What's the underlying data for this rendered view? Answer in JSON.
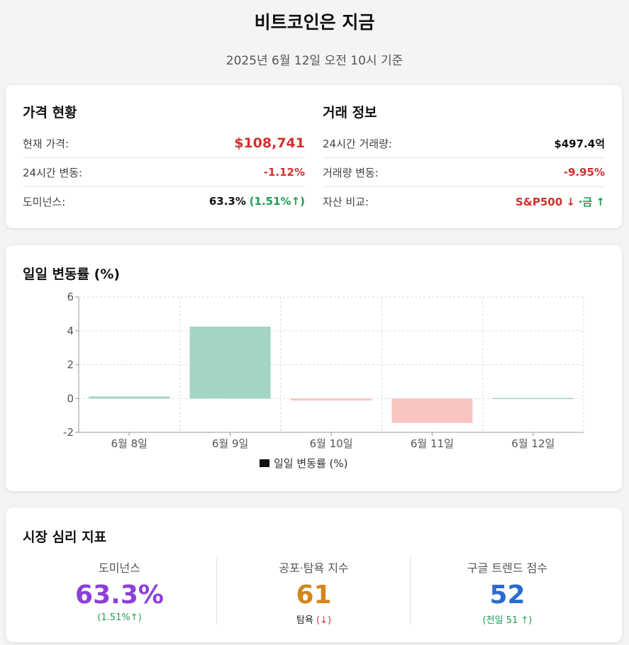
{
  "header": {
    "title": "비트코인은 지금",
    "subtitle": "2025년 6월 12일 오전 10시 기준"
  },
  "price_status": {
    "title": "가격 현황",
    "current_label": "현재 가격:",
    "current_value": "$108,741",
    "change_label": "24시간 변동:",
    "change_value": "-1.12%",
    "dominance_label": "도미넌스:",
    "dominance_value": "63.3%",
    "dominance_change": "(1.51%↑)"
  },
  "trade_info": {
    "title": "거래 정보",
    "volume_label": "24시간 거래량:",
    "volume_value": "$497.4억",
    "volume_change_label": "거래량 변동:",
    "volume_change_value": "-9.95%",
    "compare_label": "자산 비교:",
    "compare_sp": "S&P500 ↓",
    "compare_gold": "·금 ↑"
  },
  "chart_title": "일일 변동률 (%)",
  "chart_data": {
    "type": "bar",
    "title": "일일 변동률 (%)",
    "categories": [
      "6월 8일",
      "6월 9일",
      "6월 10일",
      "6월 11일",
      "6월 12일"
    ],
    "values": [
      0.12,
      4.25,
      -0.12,
      -1.45,
      0.03
    ],
    "ylim": [
      -2,
      6
    ],
    "yticks": [
      -2,
      0,
      2,
      4,
      6
    ],
    "legend": "일일 변동률 (%)",
    "legend_position": "bottom",
    "grid": true,
    "colors": {
      "positive": "#a2d5c6",
      "negative": "#f8c5c2",
      "positive_edge": "#7cc4ae",
      "negative_edge": "#f0a09a"
    }
  },
  "sentiment": {
    "title": "시장 심리 지표",
    "dominance": {
      "label": "도미넌스",
      "value": "63.3%",
      "sub": "(1.51%↑)",
      "color": "#8b3fd9"
    },
    "fear_greed": {
      "label": "공포·탐욕 지수",
      "value": "61",
      "sub_text": "탐욕",
      "sub_arrow": "(↓)",
      "color": "#d4861a"
    },
    "google_trends": {
      "label": "구글 트렌드 점수",
      "value": "52",
      "sub": "(전일 51 ↑)",
      "color": "#2a6bd1"
    }
  }
}
